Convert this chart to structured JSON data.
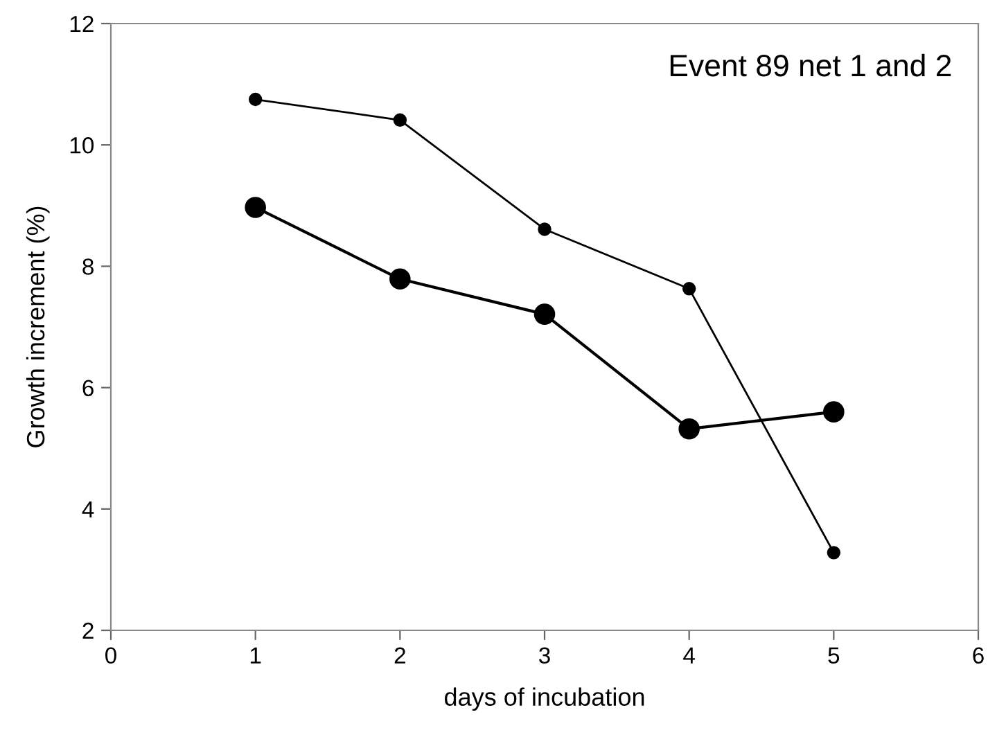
{
  "chart_data": {
    "type": "line",
    "xlabel": "days of incubation",
    "ylabel": "Growth increment (%)",
    "annotations": [
      "Event 89 net 1 and 2"
    ],
    "x": [
      1,
      2,
      3,
      4,
      5
    ],
    "series": [
      {
        "color": "#000000",
        "values": [
          10.75,
          10.41,
          8.61,
          7.63,
          3.28
        ],
        "marker": "circle"
      },
      {
        "color": "#000000",
        "values": [
          8.97,
          7.79,
          7.21,
          5.32,
          5.6
        ],
        "marker": "circle"
      }
    ],
    "xlim": [
      0,
      6
    ],
    "xticks": [
      0,
      1,
      2,
      3,
      4,
      5,
      6
    ],
    "ylim": [
      2,
      12
    ],
    "yticks": [
      2,
      4,
      6,
      8,
      10,
      12
    ],
    "grid": false,
    "legend": false,
    "line_style": "solid"
  }
}
